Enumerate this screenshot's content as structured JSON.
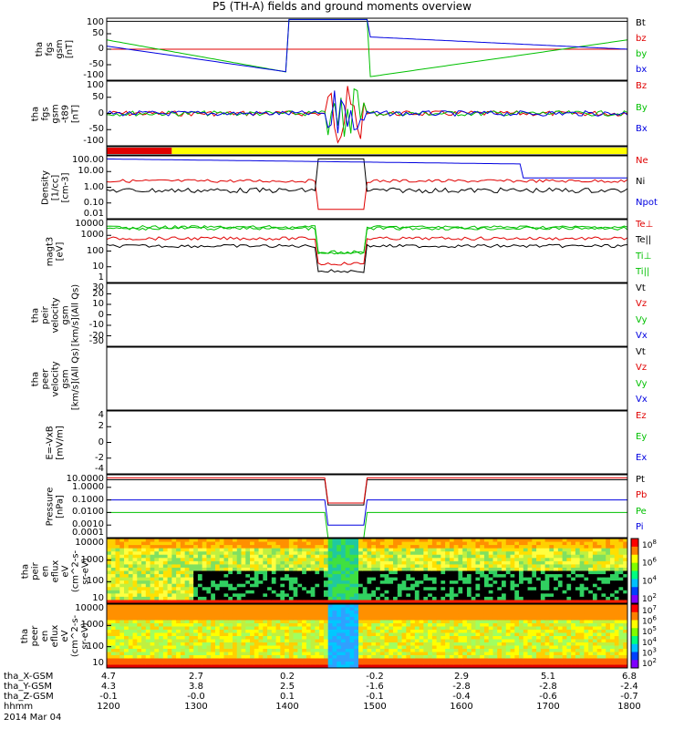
{
  "title": "P5 (TH-A) fields and ground moments overview",
  "chart_data": {
    "type": "line",
    "x_range": [
      "1200",
      "1800"
    ],
    "panels": [
      {
        "label": "tha\nfgs\ngsm\n[nT]",
        "ylim": [
          -100,
          100
        ],
        "yticks": [
          "100",
          "50",
          "0",
          "-50",
          "-100"
        ],
        "legend": [
          {
            "text": "Bt",
            "color": "#000000"
          },
          {
            "text": "bz",
            "color": "#e00000"
          },
          {
            "text": "by",
            "color": "#00c000"
          },
          {
            "text": "bx",
            "color": "#0000e0"
          }
        ]
      },
      {
        "label": "tha\nfgs\ngsm\n-t89\n[nT]",
        "ylim": [
          -120,
          100
        ],
        "yticks": [
          "100",
          "50",
          "0",
          "-50",
          "-100"
        ],
        "legend": [
          {
            "text": "Bz",
            "color": "#e00000"
          },
          {
            "text": "By",
            "color": "#00c000"
          },
          {
            "text": "Bx",
            "color": "#0000e0"
          }
        ]
      },
      {
        "label": "",
        "type": "mode-bar",
        "segments": [
          {
            "from": "1200",
            "to": "1245",
            "color": "#e00000"
          },
          {
            "from": "1245",
            "to": "1800",
            "color": "#ffff00"
          }
        ],
        "legend": []
      },
      {
        "label": "Density\n[1/cc]\n[cm-3]",
        "scale": "log",
        "yticks": [
          "100.00",
          "10.00",
          "1.00",
          "0.10",
          "0.01"
        ],
        "legend": [
          {
            "text": "Ne",
            "color": "#e00000"
          },
          {
            "text": "Ni",
            "color": "#000000"
          },
          {
            "text": "Npot",
            "color": "#0000e0"
          }
        ]
      },
      {
        "label": "magt3\n[eV]",
        "scale": "log",
        "yticks": [
          "10000",
          "1000",
          "100",
          "10",
          "1"
        ],
        "legend": [
          {
            "text": "Te⊥",
            "color": "#e00000"
          },
          {
            "text": "Te||",
            "color": "#000000"
          },
          {
            "text": "Ti⊥",
            "color": "#00c000"
          },
          {
            "text": "Ti||",
            "color": "#00c000"
          }
        ]
      },
      {
        "label": "tha\npeir\nvelocity\ngsm\n[km/s](All Qs)",
        "ylim": [
          -30,
          30
        ],
        "yticks": [
          "30",
          "20",
          "10",
          "0",
          "-10",
          "-20",
          "-30"
        ],
        "legend": [
          {
            "text": "Vt",
            "color": "#000000"
          },
          {
            "text": "Vz",
            "color": "#e00000"
          },
          {
            "text": "Vy",
            "color": "#00c000"
          },
          {
            "text": "Vx",
            "color": "#0000e0"
          }
        ]
      },
      {
        "label": "tha\npeer\nvelocity\ngsm\n[km/s](All Qs)",
        "yticks": [],
        "legend": [
          {
            "text": "Vt",
            "color": "#000000"
          },
          {
            "text": "Vz",
            "color": "#e00000"
          },
          {
            "text": "Vy",
            "color": "#00c000"
          },
          {
            "text": "Vx",
            "color": "#0000e0"
          }
        ]
      },
      {
        "label": "E=-VxB\n[mV/m]",
        "ylim": [
          -4,
          4
        ],
        "yticks": [
          "4",
          "2",
          "0",
          "-2",
          "-4"
        ],
        "legend": [
          {
            "text": "Ez",
            "color": "#e00000"
          },
          {
            "text": "Ey",
            "color": "#00c000"
          },
          {
            "text": "Ex",
            "color": "#0000e0"
          }
        ]
      },
      {
        "label": "Pressure\n[nPa]",
        "scale": "log",
        "yticks": [
          "10.0000",
          "1.0000",
          "0.1000",
          "0.0100",
          "0.0010",
          "0.0001"
        ],
        "legend": [
          {
            "text": "Pt",
            "color": "#000000"
          },
          {
            "text": "Pb",
            "color": "#e00000"
          },
          {
            "text": "Pe",
            "color": "#00c000"
          },
          {
            "text": "Pi",
            "color": "#0000e0"
          }
        ]
      },
      {
        "label": "tha\npeir\nen\neflux\neV\n(cm^2-s-\nsr-eV)",
        "type": "spectrogram",
        "yticks": [
          "10000",
          "1000",
          "100",
          "10"
        ],
        "colorbar": [
          "10^8",
          "10^6",
          "10^4",
          "10^2"
        ],
        "legend": []
      },
      {
        "label": "tha\npeer\nen\neflux\neV\n(cm^2-s-\nsr-eV)",
        "type": "spectrogram",
        "yticks": [
          "10000",
          "1000",
          "100",
          "10"
        ],
        "colorbar": [
          "10^7",
          "10^6",
          "10^5",
          "10^4",
          "10^3",
          "10^2"
        ],
        "legend": []
      }
    ],
    "footer": {
      "rows": [
        {
          "label": "tha_X-GSM",
          "values": [
            "4.7",
            "2.7",
            "0.2",
            "-0.2",
            "2.9",
            "5.1",
            "6.8"
          ]
        },
        {
          "label": "tha_Y-GSM",
          "values": [
            "4.3",
            "3.8",
            "2.5",
            "-1.6",
            "-2.8",
            "-2.8",
            "-2.4"
          ]
        },
        {
          "label": "tha_Z-GSM",
          "values": [
            "-0.1",
            "-0.0",
            "0.1",
            "-0.1",
            "-0.4",
            "-0.6",
            "-0.7"
          ]
        },
        {
          "label": "hhmm",
          "values": [
            "1200",
            "1300",
            "1400",
            "1500",
            "1600",
            "1700",
            "1800"
          ]
        }
      ],
      "date": "2014 Mar 04"
    }
  }
}
